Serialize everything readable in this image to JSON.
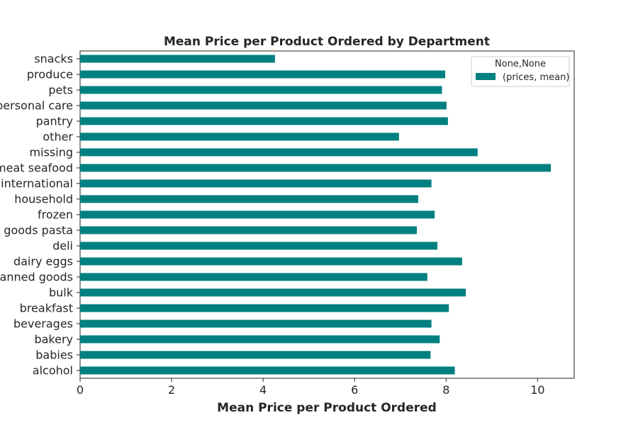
{
  "chart_data": {
    "type": "bar",
    "orientation": "horizontal",
    "title": "Mean Price per Product Ordered by Department",
    "xlabel": "Mean Price per Product Ordered",
    "ylabel": "",
    "xlim": [
      0,
      10.8
    ],
    "x_ticks": [
      "0",
      "2",
      "4",
      "6",
      "8",
      "10"
    ],
    "grid": false,
    "bar_color": "#008080",
    "categories": [
      "alcohol",
      "babies",
      "bakery",
      "beverages",
      "breakfast",
      "bulk",
      "canned goods",
      "dairy eggs",
      "deli",
      "dry goods pasta",
      "frozen",
      "household",
      "international",
      "meat seafood",
      "missing",
      "other",
      "pantry",
      "personal care",
      "pets",
      "produce",
      "snacks"
    ],
    "series": [
      {
        "name": "(prices, mean)",
        "values": [
          8.19,
          7.66,
          7.86,
          7.68,
          8.06,
          8.43,
          7.59,
          8.35,
          7.81,
          7.36,
          7.75,
          7.39,
          7.68,
          10.29,
          8.69,
          6.97,
          8.04,
          8.01,
          7.91,
          7.98,
          4.26
        ]
      }
    ],
    "legend": {
      "title": "None,None",
      "placement": "top-right"
    }
  }
}
